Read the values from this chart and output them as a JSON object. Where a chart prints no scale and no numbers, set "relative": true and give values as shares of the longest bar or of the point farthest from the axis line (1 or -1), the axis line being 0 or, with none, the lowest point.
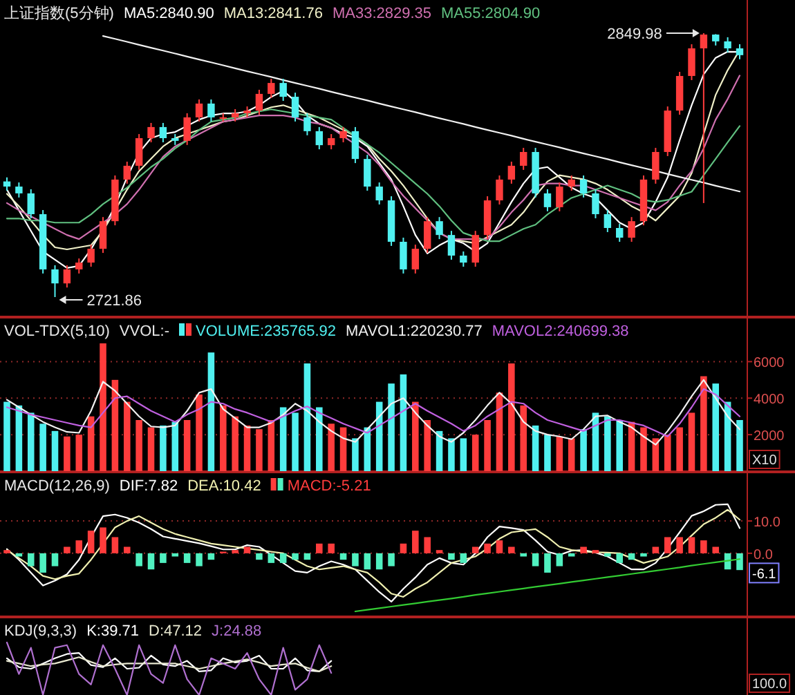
{
  "chart_data": [
    {
      "type": "candlestick",
      "title": "上证指数(5分钟)",
      "legend": "top left",
      "categories": [
        null,
        null,
        null,
        null,
        null,
        null,
        null,
        null,
        null,
        null,
        null,
        null,
        null,
        null,
        null,
        null,
        null,
        null,
        null,
        null,
        null,
        null,
        null,
        null,
        null,
        null,
        null,
        null,
        null,
        null,
        null,
        null,
        null,
        null,
        null,
        null,
        null,
        null,
        null,
        null,
        null,
        null,
        null,
        null,
        null,
        null,
        null,
        null,
        null,
        null,
        null,
        null,
        null,
        null,
        null,
        null,
        null,
        null,
        null,
        null,
        null,
        null
      ],
      "ohlc": [
        [
          2778.0,
          2780.0,
          2773.5,
          2775.5
        ],
        [
          2775.5,
          2777.5,
          2770.2,
          2772.2
        ],
        [
          2772.2,
          2774.2,
          2760.1,
          2762.1
        ],
        [
          2762.1,
          2764.1,
          2733.3,
          2735.3
        ],
        [
          2735.3,
          2737.3,
          2721.86,
          2728.5
        ],
        [
          2728.5,
          2737.3,
          2726.5,
          2735.3
        ],
        [
          2735.3,
          2740.6,
          2733.3,
          2738.6
        ],
        [
          2738.6,
          2747.3,
          2736.6,
          2745.3
        ],
        [
          2745.3,
          2760.7,
          2743.3,
          2758.7
        ],
        [
          2758.7,
          2780.9,
          2756.7,
          2778.9
        ],
        [
          2778.9,
          2787.6,
          2776.9,
          2785.6
        ],
        [
          2785.6,
          2801.0,
          2783.6,
          2799.0
        ],
        [
          2799.0,
          2806.4,
          2797.0,
          2804.4
        ],
        [
          2804.4,
          2806.4,
          2797.0,
          2799.0
        ],
        [
          2799.0,
          2801.0,
          2795.7,
          2797.7
        ],
        [
          2797.7,
          2811.1,
          2795.7,
          2809.1
        ],
        [
          2809.1,
          2817.8,
          2807.1,
          2815.8
        ],
        [
          2815.8,
          2817.8,
          2807.1,
          2809.1
        ],
        [
          2809.1,
          2811.1,
          2807.1,
          2809.1
        ],
        [
          2809.1,
          2813.1,
          2807.1,
          2811.1
        ],
        [
          2811.1,
          2814.4,
          2809.1,
          2812.4
        ],
        [
          2812.4,
          2822.5,
          2810.4,
          2820.5
        ],
        [
          2820.5,
          2827.8,
          2818.5,
          2825.8
        ],
        [
          2825.8,
          2827.8,
          2817.1,
          2819.1
        ],
        [
          2819.1,
          2821.1,
          2807.1,
          2809.1
        ],
        [
          2809.1,
          2811.1,
          2800.4,
          2802.4
        ],
        [
          2802.4,
          2804.4,
          2793.6,
          2795.6
        ],
        [
          2795.6,
          2801.0,
          2793.6,
          2799.0
        ],
        [
          2799.0,
          2804.4,
          2797.0,
          2802.4
        ],
        [
          2802.4,
          2804.4,
          2786.9,
          2788.9
        ],
        [
          2788.9,
          2790.9,
          2773.5,
          2775.5
        ],
        [
          2775.5,
          2777.5,
          2766.8,
          2768.8
        ],
        [
          2768.8,
          2770.8,
          2746.7,
          2748.7
        ],
        [
          2748.7,
          2750.7,
          2733.3,
          2735.3
        ],
        [
          2735.3,
          2747.3,
          2733.3,
          2745.3
        ],
        [
          2745.3,
          2760.7,
          2743.3,
          2758.7
        ],
        [
          2758.7,
          2760.7,
          2750.0,
          2752.0
        ],
        [
          2752.0,
          2754.0,
          2740.0,
          2742.0
        ],
        [
          2742.0,
          2744.0,
          2736.6,
          2738.6
        ],
        [
          2738.6,
          2754.0,
          2736.6,
          2752.0
        ],
        [
          2752.0,
          2770.8,
          2750.0,
          2768.8
        ],
        [
          2768.8,
          2780.9,
          2766.8,
          2778.9
        ],
        [
          2778.9,
          2787.6,
          2776.9,
          2785.6
        ],
        [
          2785.6,
          2794.3,
          2783.6,
          2792.3
        ],
        [
          2792.3,
          2794.3,
          2770.2,
          2772.2
        ],
        [
          2772.2,
          2774.2,
          2763.5,
          2765.5
        ],
        [
          2765.5,
          2777.5,
          2763.5,
          2775.5
        ],
        [
          2775.5,
          2780.9,
          2773.5,
          2778.9
        ],
        [
          2778.9,
          2780.9,
          2770.2,
          2772.2
        ],
        [
          2772.2,
          2774.2,
          2760.1,
          2762.1
        ],
        [
          2762.1,
          2764.1,
          2753.4,
          2755.4
        ],
        [
          2755.4,
          2757.4,
          2748.7,
          2750.7
        ],
        [
          2750.7,
          2760.7,
          2748.7,
          2758.7
        ],
        [
          2758.7,
          2780.9,
          2756.7,
          2778.9
        ],
        [
          2778.9,
          2794.3,
          2776.9,
          2792.3
        ],
        [
          2792.3,
          2814.4,
          2790.3,
          2812.4
        ],
        [
          2812.4,
          2831.2,
          2810.4,
          2829.2
        ],
        [
          2829.2,
          2844.6,
          2827.2,
          2842.6
        ],
        [
          2842.6,
          2849.98,
          2767.5,
          2849.3
        ],
        [
          2849.3,
          2849.5,
          2844.0,
          2846.0
        ],
        [
          2846.0,
          2848.0,
          2840.6,
          2842.6
        ],
        [
          2842.6,
          2844.6,
          2837.3,
          2839.3
        ]
      ],
      "colors": [
        "#50f0f0",
        "#50f0f0",
        "#50f0f0",
        "#50f0f0",
        "#50f0f0",
        "#ff3c3c",
        "#ff3c3c",
        "#ff3c3c",
        "#ff3c3c",
        "#ff3c3c",
        "#ff3c3c",
        "#ff3c3c",
        "#ff3c3c",
        "#50f0f0",
        "#50f0f0",
        "#ff3c3c",
        "#ff3c3c",
        "#50f0f0",
        "#ff3c3c",
        "#ff3c3c",
        "#ff3c3c",
        "#ff3c3c",
        "#ff3c3c",
        "#50f0f0",
        "#50f0f0",
        "#50f0f0",
        "#50f0f0",
        "#ff3c3c",
        "#ff3c3c",
        "#50f0f0",
        "#50f0f0",
        "#50f0f0",
        "#50f0f0",
        "#50f0f0",
        "#ff3c3c",
        "#ff3c3c",
        "#50f0f0",
        "#50f0f0",
        "#50f0f0",
        "#ff3c3c",
        "#ff3c3c",
        "#ff3c3c",
        "#ff3c3c",
        "#ff3c3c",
        "#50f0f0",
        "#50f0f0",
        "#ff3c3c",
        "#ff3c3c",
        "#50f0f0",
        "#50f0f0",
        "#50f0f0",
        "#50f0f0",
        "#ff3c3c",
        "#ff3c3c",
        "#ff3c3c",
        "#ff3c3c",
        "#ff3c3c",
        "#ff3c3c",
        "#ff3c3c",
        "#50f0f0",
        "#50f0f0",
        "#50f0f0"
      ],
      "series": [
        {
          "name": "MA5:2840.90",
          "type": "line",
          "color": "#ffffff",
          "values": [
            2774,
            2764,
            2754,
            2744,
            2740,
            2736,
            2737,
            2745,
            2755,
            2766,
            2780,
            2792,
            2799,
            2801,
            2802,
            2805,
            2808,
            2810,
            2811,
            2811,
            2812,
            2815,
            2819,
            2822,
            2817,
            2810,
            2806,
            2804,
            2801,
            2799,
            2795,
            2787,
            2779,
            2766,
            2752,
            2743,
            2747,
            2750,
            2748,
            2744,
            2748,
            2758,
            2768,
            2777,
            2784,
            2785,
            2780,
            2775,
            2772,
            2770,
            2764,
            2758,
            2755,
            2758,
            2768,
            2780,
            2798,
            2815,
            2830,
            2838,
            2841,
            2840.9
          ]
        },
        {
          "name": "MA13:2841.76",
          "type": "line",
          "color": "#f0f0c8",
          "values": [
            2772,
            2766,
            2759,
            2752,
            2746,
            2745,
            2746,
            2747,
            2754,
            2764,
            2774,
            2783,
            2789,
            2795,
            2799,
            2801,
            2803,
            2805,
            2807,
            2808,
            2810,
            2812,
            2814,
            2815,
            2813,
            2811,
            2809,
            2806,
            2803,
            2800,
            2796,
            2789,
            2783,
            2776,
            2768,
            2760,
            2753,
            2750,
            2749,
            2748,
            2751,
            2754,
            2757,
            2763,
            2771,
            2778,
            2781,
            2780,
            2779,
            2777,
            2774,
            2770,
            2766,
            2763,
            2759,
            2765,
            2771,
            2782,
            2801,
            2820,
            2832,
            2841.8
          ]
        },
        {
          "name": "MA33:2829.35",
          "type": "line",
          "color": "#d070b0",
          "values": [
            2767.5,
            2764,
            2761,
            2758,
            2755,
            2752,
            2750,
            2754,
            2758,
            2762,
            2767,
            2774,
            2782,
            2790,
            2795,
            2798,
            2801,
            2804,
            2807,
            2808,
            2809,
            2810,
            2810,
            2810,
            2809,
            2807,
            2806,
            2804,
            2800,
            2796,
            2792,
            2786,
            2778,
            2771,
            2765,
            2759,
            2753,
            2750,
            2750,
            2750,
            2750,
            2756,
            2763,
            2769,
            2776,
            2777,
            2777,
            2776,
            2776,
            2774,
            2772,
            2770,
            2768,
            2766,
            2764,
            2768,
            2776,
            2783,
            2794,
            2808,
            2818,
            2829.4
          ]
        },
        {
          "name": "MA55:2804.90",
          "type": "line",
          "color": "#60c080",
          "values": [
            2760,
            2760,
            2759,
            2759,
            2758,
            2758,
            2758,
            2762,
            2767,
            2771,
            2775,
            2780,
            2785,
            2789,
            2794,
            2798,
            2803,
            2807,
            2808,
            2809,
            2811,
            2812,
            2813,
            2812,
            2811,
            2810,
            2809,
            2808,
            2804,
            2800,
            2796,
            2792,
            2787,
            2782,
            2777,
            2772,
            2766,
            2759,
            2753,
            2751,
            2749,
            2749,
            2752,
            2755,
            2757,
            2762,
            2766,
            2770,
            2772,
            2774,
            2776,
            2774,
            2772,
            2769,
            2768,
            2769,
            2771,
            2773,
            2781,
            2789,
            2797,
            2804.9
          ]
        },
        {
          "type": "line",
          "color": "#f0f0f0",
          "values": [
            null,
            null,
            null,
            null,
            null,
            null,
            null,
            null,
            2848.6,
            2847.2,
            2845.8,
            2844.3,
            2842.9,
            2841.5,
            2840.1,
            2838.6,
            2837.2,
            2835.8,
            2834.4,
            2832.9,
            2831.5,
            2830.1,
            2828.7,
            2827.2,
            2825.8,
            2824.4,
            2823.0,
            2821.5,
            2820.1,
            2818.7,
            2817.3,
            2815.8,
            2814.4,
            2813.0,
            2811.6,
            2810.1,
            2808.7,
            2807.3,
            2805.9,
            2804.4,
            2803.0,
            2801.6,
            2800.2,
            2798.7,
            2797.3,
            2795.9,
            2794.5,
            2793.0,
            2791.6,
            2790.2,
            2788.8,
            2787.3,
            2785.9,
            2784.5,
            2783.1,
            2781.6,
            2780.2,
            2778.8,
            2777.4,
            2775.9,
            2774.5,
            2773.1
          ]
        }
      ],
      "annotations": [
        "2849.98",
        "2721.86"
      ]
    },
    {
      "type": "bar",
      "title": "VOL-TDX(5,10)",
      "subtitle": "VVOL:-",
      "legend": "top left",
      "grid": "y",
      "ylim": [
        0,
        8400
      ],
      "yticks": [
        2000,
        4000,
        6000
      ],
      "categories": [
        null,
        null,
        null,
        null,
        null,
        null,
        null,
        null,
        null,
        null,
        null,
        null,
        null,
        null,
        null,
        null,
        null,
        null,
        null,
        null,
        null,
        null,
        null,
        null,
        null,
        null,
        null,
        null,
        null,
        null,
        null,
        null,
        null,
        null,
        null,
        null,
        null,
        null,
        null,
        null,
        null,
        null,
        null,
        null,
        null,
        null,
        null,
        null,
        null,
        null,
        null,
        null,
        null,
        null,
        null,
        null,
        null,
        null,
        null,
        null,
        null,
        null
      ],
      "series": [
        {
          "name": "VOLUME:235765.92",
          "values": [
            3800,
            3600,
            3200,
            2600,
            2200,
            1900,
            2000,
            3000,
            7000,
            5000,
            3800,
            2800,
            2400,
            2500,
            2700,
            2800,
            4200,
            6500,
            3600,
            3000,
            2500,
            2300,
            2800,
            3500,
            3200,
            5900,
            3500,
            2600,
            2400,
            1800,
            2400,
            3800,
            4800,
            5300,
            3800,
            2800,
            2200,
            1800,
            1800,
            2000,
            2800,
            4300,
            5900,
            3600,
            2500,
            2000,
            1900,
            1800,
            2300,
            3200,
            3000,
            2800,
            2700,
            2400,
            1800,
            2000,
            2400,
            3200,
            5200,
            4800,
            3800,
            2800
          ],
          "colors": [
            "#50f0f0",
            "#50f0f0",
            "#50f0f0",
            "#50f0f0",
            "#50f0f0",
            "#ff3c3c",
            "#ff3c3c",
            "#ff3c3c",
            "#ff3c3c",
            "#ff3c3c",
            "#ff3c3c",
            "#ff3c3c",
            "#ff3c3c",
            "#50f0f0",
            "#50f0f0",
            "#ff3c3c",
            "#ff3c3c",
            "#50f0f0",
            "#ff3c3c",
            "#ff3c3c",
            "#ff3c3c",
            "#ff3c3c",
            "#ff3c3c",
            "#50f0f0",
            "#50f0f0",
            "#50f0f0",
            "#50f0f0",
            "#ff3c3c",
            "#ff3c3c",
            "#50f0f0",
            "#50f0f0",
            "#50f0f0",
            "#50f0f0",
            "#50f0f0",
            "#ff3c3c",
            "#ff3c3c",
            "#50f0f0",
            "#50f0f0",
            "#50f0f0",
            "#ff3c3c",
            "#ff3c3c",
            "#ff3c3c",
            "#ff3c3c",
            "#ff3c3c",
            "#50f0f0",
            "#50f0f0",
            "#ff3c3c",
            "#ff3c3c",
            "#50f0f0",
            "#50f0f0",
            "#50f0f0",
            "#50f0f0",
            "#ff3c3c",
            "#ff3c3c",
            "#ff3c3c",
            "#ff3c3c",
            "#ff3c3c",
            "#ff3c3c",
            "#ff3c3c",
            "#50f0f0",
            "#50f0f0",
            "#50f0f0"
          ]
        },
        {
          "name": "MAVOL1:220230.77",
          "type": "line",
          "color": "#f0f0f0",
          "values": [
            3910,
            3500,
            3100,
            2700,
            2400,
            2150,
            2100,
            3300,
            4900,
            4400,
            3700,
            3000,
            2450,
            2400,
            2500,
            3300,
            4300,
            4500,
            3400,
            2900,
            2400,
            2400,
            2650,
            3100,
            3700,
            3300,
            2700,
            2200,
            1800,
            1600,
            2300,
            3000,
            3700,
            4000,
            3200,
            2500,
            1900,
            1600,
            2100,
            2800,
            3600,
            4300,
            3700,
            2700,
            2200,
            2000,
            1900,
            1750,
            2300,
            3000,
            3050,
            2700,
            2400,
            1900,
            1450,
            2200,
            3100,
            4100,
            5000,
            4000,
            3000,
            2290
          ]
        },
        {
          "name": "MAVOL2:240699.38",
          "type": "line",
          "color": "#c060e0",
          "values": [
            3500,
            3300,
            3100,
            2950,
            2800,
            2650,
            2500,
            2400,
            3200,
            4000,
            4100,
            3700,
            3300,
            3000,
            2700,
            3100,
            3400,
            3800,
            3700,
            3400,
            3200,
            2950,
            2700,
            3000,
            3300,
            3550,
            3200,
            2900,
            2600,
            2350,
            2100,
            2500,
            2900,
            3300,
            3700,
            3300,
            2950,
            2600,
            2200,
            2500,
            3000,
            3400,
            3800,
            3700,
            3200,
            2800,
            2600,
            2400,
            2200,
            2500,
            2800,
            2800,
            2650,
            2500,
            2200,
            1900,
            2600,
            3500,
            4500,
            4200,
            3600,
            3000
          ]
        }
      ],
      "annotations": [
        "X10"
      ]
    },
    {
      "type": "bar",
      "title": "MACD(12,26,9)",
      "legend": "top left",
      "grid": "y",
      "ylim": [
        -19.5,
        25
      ],
      "yticks": [
        {
          "value": 0,
          "label": "0.0"
        },
        {
          "value": 10,
          "label": "10.0"
        }
      ],
      "categories": [
        null,
        null,
        null,
        null,
        null,
        null,
        null,
        null,
        null,
        null,
        null,
        null,
        null,
        null,
        null,
        null,
        null,
        null,
        null,
        null,
        null,
        null,
        null,
        null,
        null,
        null,
        null,
        null,
        null,
        null,
        null,
        null,
        null,
        null,
        null,
        null,
        null,
        null,
        null,
        null,
        null,
        null,
        null,
        null,
        null,
        null,
        null,
        null,
        null,
        null,
        null,
        null,
        null,
        null,
        null,
        null,
        null,
        null,
        null,
        null,
        null,
        null
      ],
      "series": [
        {
          "name": "DIF:7.82",
          "type": "line",
          "color": "#ffffff",
          "values": [
            1.3,
            -2,
            -6,
            -10,
            -8.5,
            -6.5,
            -2,
            5,
            11.5,
            12,
            11,
            9.5,
            7.5,
            5.2,
            4.5,
            3.8,
            3.1,
            2.2,
            1.2,
            1.2,
            2.5,
            2,
            -0.5,
            -3,
            -5.5,
            -6,
            -4,
            -2.5,
            -3.5,
            -5,
            -8.5,
            -12,
            -15,
            -11,
            -7.5,
            -3.5,
            -1.5,
            -3,
            -3.5,
            0,
            5,
            8.3,
            7.8,
            7.2,
            4,
            0.5,
            -0.5,
            0.8,
            1,
            0.2,
            -1,
            -3,
            -5,
            -5,
            -3,
            1.5,
            6.5,
            11.6,
            13,
            15,
            15.2,
            7.8
          ]
        },
        {
          "name": "DEA:10.42",
          "type": "line",
          "color": "#f0f0b0",
          "values": [
            1,
            -1.5,
            -4,
            -7,
            -8,
            -7,
            -6.3,
            -2,
            3,
            8,
            10,
            11.5,
            9.5,
            7.5,
            6,
            5,
            4,
            3,
            2.5,
            2,
            1.5,
            1,
            0.5,
            0,
            -2,
            -4,
            -5,
            -4.5,
            -4,
            -5,
            -6,
            -9,
            -12.5,
            -13.5,
            -11,
            -9,
            -6,
            -3,
            -2,
            -1,
            1.5,
            4.5,
            6.5,
            7,
            7.5,
            5,
            2,
            1,
            0.5,
            0.3,
            0.2,
            0,
            -1.5,
            -3,
            -2,
            -1,
            2,
            5.5,
            9,
            11,
            13.5,
            10.4
          ]
        },
        {
          "name": "MACD:-5.21",
          "values": [
            1,
            -1,
            -4,
            -6,
            -4,
            2,
            4,
            7,
            8,
            5,
            2,
            -4,
            -5,
            -3,
            -1,
            -3,
            -4,
            -2,
            0.5,
            1,
            2,
            -2,
            -3,
            -3,
            -2,
            -2,
            3,
            3,
            -2,
            -4,
            -5,
            -5,
            -4,
            3,
            7,
            5,
            1,
            -2,
            -3,
            2,
            3,
            4,
            2,
            -1,
            -4,
            -6,
            -4,
            -1,
            2,
            1,
            -1,
            -3,
            -2,
            -1,
            2,
            5,
            5,
            5,
            4,
            2,
            -5,
            -5.2
          ],
          "colors": [
            "#ff3c3c",
            "#50f0c0",
            "#50f0c0",
            "#50f0c0",
            "#50f0c0",
            "#ff3c3c",
            "#ff3c3c",
            "#ff3c3c",
            "#ff3c3c",
            "#ff3c3c",
            "#ff3c3c",
            "#50f0c0",
            "#50f0c0",
            "#50f0c0",
            "#50f0c0",
            "#50f0c0",
            "#50f0c0",
            "#50f0c0",
            "#ff3c3c",
            "#ff3c3c",
            "#ff3c3c",
            "#50f0c0",
            "#50f0c0",
            "#50f0c0",
            "#50f0c0",
            "#50f0c0",
            "#ff3c3c",
            "#ff3c3c",
            "#50f0c0",
            "#50f0c0",
            "#50f0c0",
            "#50f0c0",
            "#50f0c0",
            "#ff3c3c",
            "#ff3c3c",
            "#ff3c3c",
            "#ff3c3c",
            "#50f0c0",
            "#50f0c0",
            "#ff3c3c",
            "#ff3c3c",
            "#ff3c3c",
            "#ff3c3c",
            "#50f0c0",
            "#50f0c0",
            "#50f0c0",
            "#50f0c0",
            "#50f0c0",
            "#ff3c3c",
            "#ff3c3c",
            "#50f0c0",
            "#50f0c0",
            "#50f0c0",
            "#50f0c0",
            "#ff3c3c",
            "#ff3c3c",
            "#ff3c3c",
            "#ff3c3c",
            "#ff3c3c",
            "#ff3c3c",
            "#50f0c0",
            "#50f0c0"
          ]
        },
        {
          "type": "line",
          "color": "#33cc33",
          "values": [
            null,
            null,
            null,
            null,
            null,
            null,
            null,
            null,
            null,
            null,
            null,
            null,
            null,
            null,
            null,
            null,
            null,
            null,
            null,
            null,
            null,
            null,
            null,
            null,
            null,
            null,
            null,
            null,
            null,
            -18.0,
            -17.5,
            -17.0,
            -16.5,
            -16.0,
            -15.5,
            -15.0,
            -14.5,
            -14.0,
            -13.5,
            -12.9,
            -12.4,
            -11.9,
            -11.4,
            -10.9,
            -10.4,
            -9.9,
            -9.4,
            -8.9,
            -8.4,
            -7.9,
            -7.4,
            -6.9,
            -6.4,
            -5.9,
            -5.4,
            -4.9,
            -4.4,
            -3.8,
            -3.3,
            -2.8,
            -2.3,
            -1.8
          ]
        }
      ],
      "annotations": [
        {
          "text": "-6.1",
          "y": -6.1
        }
      ]
    },
    {
      "type": "line",
      "title": "KDJ(9,3,3)",
      "legend": "top left",
      "relative": true,
      "categories": [
        null,
        null,
        null,
        null,
        null,
        null,
        null,
        null,
        null,
        null,
        null,
        null,
        null,
        null,
        null,
        null,
        null,
        null,
        null,
        null,
        null,
        null,
        null,
        null,
        null,
        null,
        null,
        null,
        null,
        null,
        null,
        null,
        null,
        null,
        null,
        null,
        null,
        null,
        null,
        null,
        null,
        null,
        null,
        null,
        null,
        null,
        null,
        null,
        null,
        null,
        null,
        null,
        null,
        null,
        null,
        null,
        null,
        null,
        null,
        null,
        null,
        null
      ],
      "series": [
        {
          "name": "K:39.71",
          "color": "#ffffff",
          "values": [
            0.7,
            0.53,
            0.5,
            0.6,
            0.7,
            0.78,
            0.8,
            0.57,
            0.53,
            0.7,
            0.5,
            0.52,
            0.75,
            0.58,
            0.55,
            0.65,
            0.45,
            0.47,
            0.7,
            0.62,
            0.65,
            0.75,
            0.5,
            0.5,
            0.7,
            0.47,
            0.45,
            0.65,
            null,
            null,
            null,
            null,
            null,
            null,
            null,
            null,
            null,
            null,
            null,
            null,
            null,
            null,
            null,
            null,
            null,
            null,
            null,
            null,
            null,
            null,
            null,
            null,
            null,
            null,
            null,
            null,
            null,
            null,
            null,
            null,
            null,
            null
          ]
        },
        {
          "name": "D:47.12",
          "color": "#e8e8d0",
          "values": [
            0.65,
            0.6,
            0.55,
            0.58,
            0.6,
            0.66,
            0.72,
            0.63,
            0.55,
            0.58,
            0.6,
            0.6,
            0.6,
            0.6,
            0.6,
            0.55,
            0.5,
            0.55,
            0.6,
            0.64,
            0.68,
            0.62,
            0.55,
            0.58,
            0.6,
            0.52,
            0.45,
            0.55,
            null,
            null,
            null,
            null,
            null,
            null,
            null,
            null,
            null,
            null,
            null,
            null,
            null,
            null,
            null,
            null,
            null,
            null,
            null,
            null,
            null,
            null,
            null,
            null,
            null,
            null,
            null,
            null,
            null,
            null,
            null,
            null,
            null,
            null
          ]
        },
        {
          "name": "J:24.88",
          "color": "#b070d0",
          "values": [
            1.0,
            0.4,
            0.9,
            0,
            0.9,
            0.95,
            0.4,
            0.2,
            0.95,
            0.5,
            0,
            0.95,
            0.4,
            0.23,
            0.95,
            0.3,
            0,
            0.7,
            0.6,
            0.5,
            0.8,
            0.3,
            0,
            0.9,
            0.1,
            0.3,
            0.95,
            0.42,
            null,
            null,
            null,
            null,
            null,
            null,
            null,
            null,
            null,
            null,
            null,
            null,
            null,
            null,
            null,
            null,
            null,
            null,
            null,
            null,
            null,
            null,
            null,
            null,
            null,
            null,
            null,
            null,
            null,
            null,
            null,
            null,
            null,
            null
          ]
        }
      ],
      "annotations": [
        "100.0"
      ]
    }
  ]
}
